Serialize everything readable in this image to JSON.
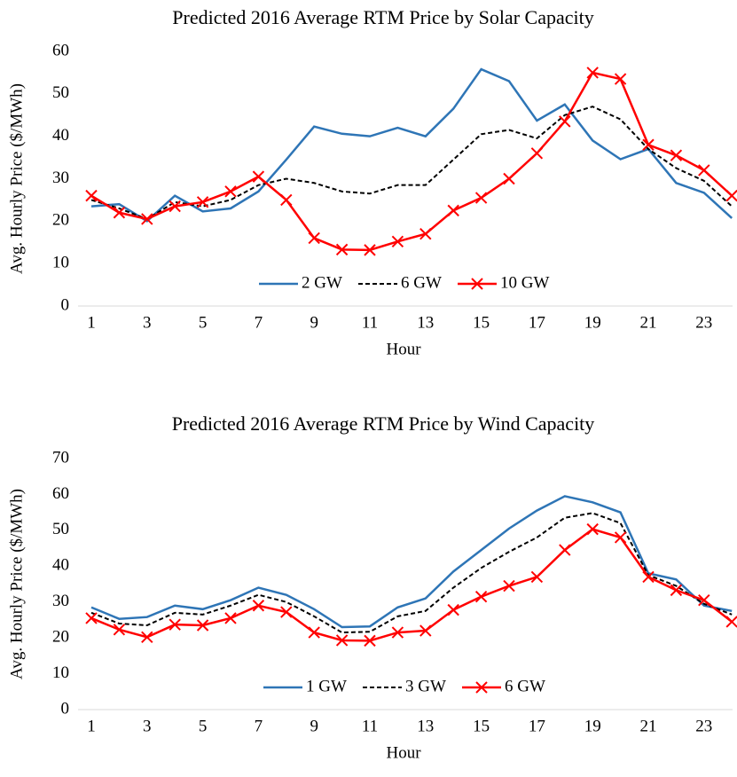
{
  "chart_data": [
    {
      "type": "line",
      "title": "Predicted 2016 Average RTM Price by Solar Capacity",
      "x_label": "Hour",
      "y_label": "Avg. Hourly Price ($/MWh)",
      "categories": [
        "1",
        null,
        "3",
        null,
        "5",
        null,
        "7",
        null,
        "9",
        null,
        "11",
        null,
        "13",
        null,
        "15",
        null,
        "17",
        null,
        "19",
        null,
        "21",
        null,
        "23",
        null
      ],
      "ylim": [
        0,
        60
      ],
      "yticks": [
        0,
        10,
        20,
        30,
        40,
        50,
        60
      ],
      "legend": "bottom",
      "series": [
        {
          "name": "2 GW",
          "color": "#2e75b6",
          "style": "solid",
          "marker": "none",
          "values": [
            23.5,
            24,
            20,
            26,
            22.3,
            23,
            27,
            34.5,
            42.3,
            40.6,
            40,
            42,
            40,
            46.5,
            55.8,
            53,
            43.7,
            47.5,
            39,
            34.6,
            37,
            29,
            26.7,
            20.7
          ]
        },
        {
          "name": "6 GW",
          "color": "#000000",
          "style": "dashed",
          "marker": "none",
          "values": [
            25,
            23,
            20.5,
            24.5,
            23.5,
            25,
            28.5,
            30,
            29,
            27,
            26.5,
            28.5,
            28.5,
            34.5,
            40.5,
            41.5,
            39.5,
            45,
            47,
            44,
            37,
            32.5,
            29.5,
            23.5
          ]
        },
        {
          "name": "10 GW",
          "color": "#ff0000",
          "style": "solid",
          "marker": "x",
          "values": [
            26,
            22,
            20.5,
            23.5,
            24.5,
            27,
            30.5,
            25,
            16,
            13.3,
            13.2,
            15.2,
            17,
            22.5,
            25.5,
            30,
            36,
            43.5,
            55,
            53.5,
            38,
            35.5,
            32,
            26
          ]
        }
      ]
    },
    {
      "type": "line",
      "title": "Predicted 2016 Average RTM Price by Wind Capacity",
      "x_label": "Hour",
      "y_label": "Avg. Hourly Price ($/MWh)",
      "categories": [
        "1",
        null,
        "3",
        null,
        "5",
        null,
        "7",
        null,
        "9",
        null,
        "11",
        null,
        "13",
        null,
        "15",
        null,
        "17",
        null,
        "19",
        null,
        "21",
        null,
        "23",
        null
      ],
      "ylim": [
        0,
        70
      ],
      "yticks": [
        0,
        10,
        20,
        30,
        40,
        50,
        60,
        70
      ],
      "legend": "bottom",
      "series": [
        {
          "name": "1 GW",
          "color": "#2e75b6",
          "style": "solid",
          "marker": "none",
          "values": [
            28.5,
            25.3,
            25.8,
            29,
            28,
            30.5,
            34,
            32,
            28,
            23,
            23.2,
            28.5,
            31,
            38.5,
            44.5,
            50.5,
            55.5,
            59.5,
            57.8,
            55,
            38,
            36.3,
            29,
            27.5
          ]
        },
        {
          "name": "3 GW",
          "color": "#000000",
          "style": "dashed",
          "marker": "none",
          "values": [
            27,
            24,
            23.5,
            27,
            26.5,
            29,
            32,
            30,
            26,
            21.5,
            21.7,
            26,
            27.5,
            34,
            39.5,
            44,
            48,
            53.5,
            54.8,
            52,
            37.5,
            34.5,
            29.5,
            26.5
          ]
        },
        {
          "name": "6 GW",
          "color": "#ff0000",
          "style": "solid",
          "marker": "x",
          "values": [
            25.5,
            22.3,
            20.2,
            23.7,
            23.5,
            25.5,
            29,
            27.2,
            21.5,
            19.3,
            19.2,
            21.5,
            22,
            27.8,
            31.5,
            34.5,
            37,
            44.5,
            50.3,
            48,
            37,
            33.3,
            30.5,
            24.5
          ]
        }
      ]
    }
  ]
}
